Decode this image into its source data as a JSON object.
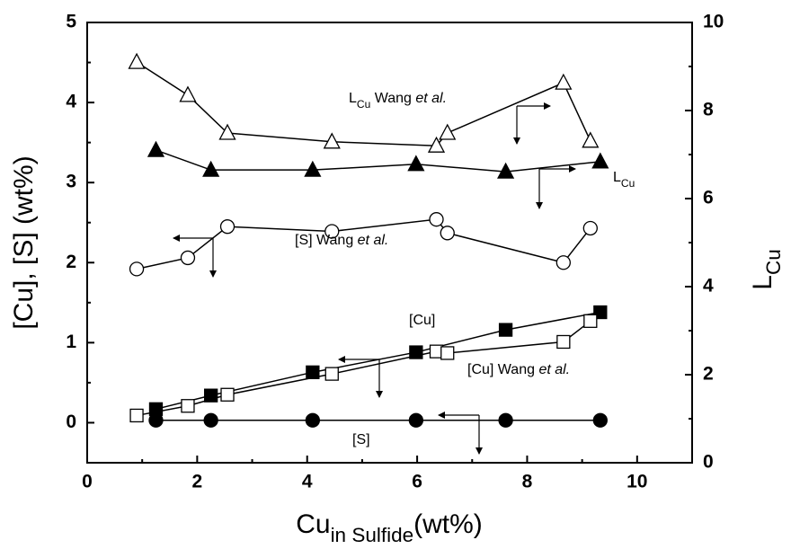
{
  "chart_data": {
    "type": "line",
    "xlim": [
      0,
      11
    ],
    "xticks": [
      0,
      2,
      4,
      6,
      8,
      10
    ],
    "ylim": [
      -0.5,
      5
    ],
    "yticks": [
      0,
      1,
      2,
      3,
      4,
      5
    ],
    "y2lim": [
      0,
      10
    ],
    "y2ticks": [
      0,
      2,
      4,
      6,
      8,
      10
    ],
    "xlabel": [
      {
        "text": "Cu",
        "style": "normal"
      },
      {
        "text": "in Sulfide",
        "style": "sub"
      },
      {
        "text": "(wt%)",
        "style": "normal"
      }
    ],
    "ylabel": "[Cu], [S] (wt%)",
    "y2label": [
      {
        "text": "L",
        "style": "normal"
      },
      {
        "text": "Cu",
        "style": "sub"
      }
    ],
    "series": [
      {
        "marker": "triangle",
        "filled": false,
        "axis": "y2",
        "color": "#000000",
        "x": [
          0.9,
          1.83,
          2.55,
          4.45,
          6.35,
          6.55,
          8.66,
          9.15
        ],
        "values": [
          9.1,
          8.35,
          7.49,
          7.29,
          7.2,
          7.49,
          8.63,
          7.31
        ]
      },
      {
        "marker": "triangle",
        "filled": true,
        "axis": "y2",
        "color": "#000000",
        "x": [
          1.25,
          2.25,
          4.1,
          5.98,
          7.61,
          9.33
        ],
        "values": [
          7.1,
          6.65,
          6.65,
          6.78,
          6.61,
          6.84
        ]
      },
      {
        "marker": "circle",
        "filled": false,
        "axis": "y",
        "color": "#000000",
        "x": [
          0.9,
          1.83,
          2.55,
          4.45,
          6.35,
          6.55,
          8.66,
          9.15
        ],
        "values": [
          1.92,
          2.06,
          2.45,
          2.39,
          2.54,
          2.37,
          2.0,
          2.43
        ]
      },
      {
        "marker": "square",
        "filled": true,
        "axis": "y",
        "color": "#000000",
        "x": [
          1.25,
          2.25,
          4.1,
          5.98,
          7.61,
          9.33
        ],
        "values": [
          0.17,
          0.34,
          0.63,
          0.88,
          1.16,
          1.38
        ]
      },
      {
        "marker": "square",
        "filled": false,
        "axis": "y",
        "color": "#000000",
        "x": [
          0.9,
          1.83,
          2.55,
          4.45,
          6.35,
          6.55,
          8.66,
          9.15
        ],
        "values": [
          0.09,
          0.21,
          0.35,
          0.61,
          0.89,
          0.87,
          1.01,
          1.27
        ]
      },
      {
        "marker": "circle",
        "filled": true,
        "axis": "y",
        "color": "#000000",
        "x": [
          1.25,
          2.25,
          4.1,
          5.98,
          7.61,
          9.33
        ],
        "values": [
          0.03,
          0.03,
          0.03,
          0.03,
          0.03,
          0.03
        ]
      }
    ],
    "annotations": [
      [
        {
          "text": "L",
          "style": "normal"
        },
        {
          "text": "Cu",
          "style": "sub"
        },
        {
          "text": " Wang ",
          "style": "normal"
        },
        {
          "text": "et al.",
          "style": "italic"
        }
      ],
      [
        {
          "text": "L",
          "style": "normal"
        },
        {
          "text": "Cu",
          "style": "sub"
        }
      ],
      [
        {
          "text": "[S] Wang ",
          "style": "normal"
        },
        {
          "text": "et al.",
          "style": "italic"
        }
      ],
      [
        {
          "text": "[Cu]",
          "style": "normal"
        }
      ],
      [
        {
          "text": "[Cu] Wang ",
          "style": "normal"
        },
        {
          "text": "et al.",
          "style": "italic"
        }
      ],
      [
        {
          "text": "[S]",
          "style": "normal"
        }
      ]
    ]
  }
}
